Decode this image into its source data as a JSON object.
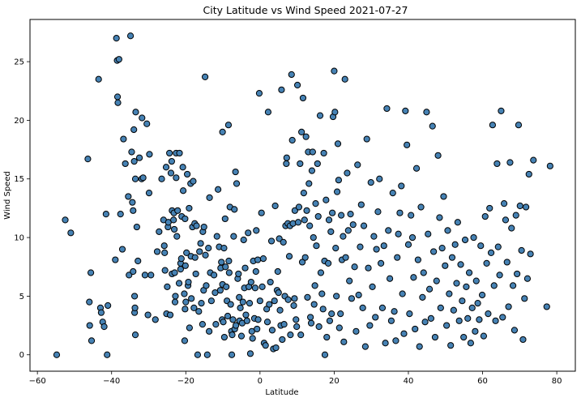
{
  "chart_data": {
    "type": "scatter",
    "title": "City Latitude vs Wind Speed 2021-07-27",
    "xlabel": "Latitude",
    "ylabel": "Wind Speed",
    "xlim": [
      -62,
      85
    ],
    "ylim": [
      -1.4,
      28.6
    ],
    "xticks": [
      -60,
      -40,
      -20,
      0,
      20,
      40,
      60,
      80
    ],
    "yticks": [
      0,
      5,
      10,
      15,
      20,
      25
    ],
    "grid": false,
    "colors": {
      "marker_fill": "#4682b4",
      "marker_edge": "#000000"
    },
    "points": [
      [
        -54.8,
        0.0
      ],
      [
        -52.5,
        11.5
      ],
      [
        -51.0,
        10.4
      ],
      [
        -46.4,
        16.7
      ],
      [
        -46.0,
        4.5
      ],
      [
        -45.9,
        2.5
      ],
      [
        -45.6,
        7.0
      ],
      [
        -45.4,
        1.2
      ],
      [
        -43.5,
        23.5
      ],
      [
        -43.0,
        4.0
      ],
      [
        -42.8,
        3.6
      ],
      [
        -42.4,
        2.8
      ],
      [
        -42.0,
        2.4
      ],
      [
        -41.5,
        12.0
      ],
      [
        -41.2,
        0.0
      ],
      [
        -41.0,
        4.2
      ],
      [
        -39.0,
        8.1
      ],
      [
        -38.7,
        27.0
      ],
      [
        -38.5,
        25.1
      ],
      [
        -38.4,
        22.0
      ],
      [
        -38.3,
        21.5
      ],
      [
        -38.0,
        25.2
      ],
      [
        -37.6,
        12.0
      ],
      [
        -37.1,
        9.0
      ],
      [
        -36.8,
        18.4
      ],
      [
        -36.3,
        16.3
      ],
      [
        -35.5,
        13.5
      ],
      [
        -35.3,
        6.8
      ],
      [
        -34.9,
        27.2
      ],
      [
        -34.6,
        17.3
      ],
      [
        -34.4,
        13.0
      ],
      [
        -34.2,
        12.3
      ],
      [
        -34.2,
        7.1
      ],
      [
        -34.0,
        19.2
      ],
      [
        -33.9,
        16.5
      ],
      [
        -33.8,
        3.6
      ],
      [
        -33.8,
        5.0
      ],
      [
        -33.7,
        4.0
      ],
      [
        -33.6,
        15.0
      ],
      [
        -33.6,
        1.7
      ],
      [
        -33.5,
        20.7
      ],
      [
        -33.2,
        10.9
      ],
      [
        -32.9,
        8.0
      ],
      [
        -32.5,
        16.8
      ],
      [
        -31.9,
        15.0
      ],
      [
        -31.8,
        20.2
      ],
      [
        -31.5,
        15.1
      ],
      [
        -31.0,
        6.8
      ],
      [
        -30.5,
        19.7
      ],
      [
        -30.2,
        3.4
      ],
      [
        -29.9,
        13.8
      ],
      [
        -29.8,
        17.1
      ],
      [
        -29.4,
        6.8
      ],
      [
        -28.2,
        3.0
      ],
      [
        -27.7,
        8.8
      ],
      [
        -27.2,
        10.5
      ],
      [
        -26.5,
        15.0
      ],
      [
        -26.0,
        11.5
      ],
      [
        -25.8,
        9.3
      ],
      [
        -25.7,
        8.7
      ],
      [
        -25.6,
        7.2
      ],
      [
        -25.3,
        16.0
      ],
      [
        -25.2,
        3.5
      ],
      [
        -25.0,
        5.8
      ],
      [
        -24.8,
        10.9
      ],
      [
        -24.7,
        11.3
      ],
      [
        -24.4,
        17.2
      ],
      [
        -24.2,
        3.4
      ],
      [
        -24.0,
        15.5
      ],
      [
        -23.8,
        16.5
      ],
      [
        -23.7,
        12.3
      ],
      [
        -23.7,
        6.9
      ],
      [
        -23.3,
        11.5
      ],
      [
        -23.2,
        12.1
      ],
      [
        -23.1,
        10.7
      ],
      [
        -23.0,
        7.0
      ],
      [
        -22.9,
        4.5
      ],
      [
        -22.8,
        5.0
      ],
      [
        -22.6,
        17.2
      ],
      [
        -22.6,
        15.1
      ],
      [
        -22.4,
        10.1
      ],
      [
        -22.2,
        12.3
      ],
      [
        -21.8,
        6.1
      ],
      [
        -21.7,
        17.2
      ],
      [
        -21.4,
        7.3
      ],
      [
        -21.4,
        7.8
      ],
      [
        -21.2,
        8.2
      ],
      [
        -21.1,
        11.8
      ],
      [
        -20.8,
        16.0
      ],
      [
        -20.7,
        14.0
      ],
      [
        -20.4,
        5.2
      ],
      [
        -20.3,
        1.2
      ],
      [
        -20.2,
        11.6
      ],
      [
        -20.2,
        3.9
      ],
      [
        -20.1,
        7.6
      ],
      [
        -20.0,
        4.5
      ],
      [
        -19.8,
        8.7
      ],
      [
        -19.6,
        15.4
      ],
      [
        -19.4,
        5.9
      ],
      [
        -19.3,
        6.2
      ],
      [
        -19.1,
        12.5
      ],
      [
        -19.0,
        2.3
      ],
      [
        -18.7,
        14.6
      ],
      [
        -18.6,
        8.4
      ],
      [
        -18.5,
        4.8
      ],
      [
        -18.2,
        10.9
      ],
      [
        -18.0,
        14.8
      ],
      [
        -17.8,
        4.0
      ],
      [
        -17.6,
        11.2
      ],
      [
        -17.5,
        8.3
      ],
      [
        -17.3,
        6.9
      ],
      [
        -17.1,
        11.0
      ],
      [
        -16.8,
        0.0
      ],
      [
        -16.5,
        3.7
      ],
      [
        -16.3,
        8.8
      ],
      [
        -16.0,
        9.5
      ],
      [
        -15.8,
        4.4
      ],
      [
        -15.5,
        2.6
      ],
      [
        -15.4,
        10.5
      ],
      [
        -15.2,
        5.5
      ],
      [
        -15.1,
        10.9
      ],
      [
        -14.8,
        23.7
      ],
      [
        -14.7,
        8.5
      ],
      [
        -14.5,
        5.9
      ],
      [
        -14.2,
        0.0
      ],
      [
        -13.9,
        9.1
      ],
      [
        -13.7,
        2.0
      ],
      [
        -13.6,
        13.4
      ],
      [
        -13.4,
        7.0
      ],
      [
        -13.1,
        4.6
      ],
      [
        -12.4,
        6.8
      ],
      [
        -12.1,
        5.3
      ],
      [
        -11.9,
        2.6
      ],
      [
        -11.6,
        10.1
      ],
      [
        -11.3,
        14.1
      ],
      [
        -11.0,
        9.2
      ],
      [
        -10.7,
        5.5
      ],
      [
        -10.6,
        7.4
      ],
      [
        -10.4,
        7.9
      ],
      [
        -10.2,
        3.0
      ],
      [
        -10.1,
        19.0
      ],
      [
        -10.1,
        6.0
      ],
      [
        -9.9,
        2.8
      ],
      [
        -9.7,
        9.1
      ],
      [
        -9.6,
        1.5
      ],
      [
        -9.4,
        11.6
      ],
      [
        -9.3,
        7.5
      ],
      [
        -9.1,
        5.8
      ],
      [
        -8.9,
        4.6
      ],
      [
        -8.7,
        3.3
      ],
      [
        -8.5,
        19.6
      ],
      [
        -8.4,
        8.0
      ],
      [
        -8.3,
        7.0
      ],
      [
        -8.1,
        12.6
      ],
      [
        -7.9,
        4.3
      ],
      [
        -7.7,
        2.0
      ],
      [
        -7.6,
        0.0
      ],
      [
        -7.5,
        1.7
      ],
      [
        -7.3,
        3.0
      ],
      [
        -7.1,
        10.1
      ],
      [
        -6.9,
        12.4
      ],
      [
        -6.8,
        2.2
      ],
      [
        -6.6,
        15.6
      ],
      [
        -6.5,
        2.5
      ],
      [
        -6.3,
        14.6
      ],
      [
        -6.0,
        6.5
      ],
      [
        -5.8,
        6.9
      ],
      [
        -5.6,
        4.9
      ],
      [
        -5.5,
        2.9
      ],
      [
        -5.3,
        4.0
      ],
      [
        -5.0,
        1.6
      ],
      [
        -4.8,
        2.7
      ],
      [
        -4.6,
        4.5
      ],
      [
        -4.4,
        9.8
      ],
      [
        -4.2,
        5.7
      ],
      [
        -4.0,
        7.4
      ],
      [
        -3.8,
        3.4
      ],
      [
        -3.5,
        2.9
      ],
      [
        -3.2,
        10.4
      ],
      [
        -3.0,
        5.8
      ],
      [
        -2.8,
        4.4
      ],
      [
        -2.6,
        0.1
      ],
      [
        -2.4,
        6.2
      ],
      [
        -2.2,
        2.0
      ],
      [
        -2.0,
        1.4
      ],
      [
        -1.8,
        8.0
      ],
      [
        -1.5,
        3.1
      ],
      [
        -1.3,
        5.7
      ],
      [
        -1.1,
        7.1
      ],
      [
        -1.0,
        10.6
      ],
      [
        -0.8,
        2.2
      ],
      [
        -0.6,
        8.1
      ],
      [
        -0.5,
        3.0
      ],
      [
        -0.2,
        22.3
      ],
      [
        0.0,
        4.6
      ],
      [
        0.4,
        12.1
      ],
      [
        0.6,
        5.8
      ],
      [
        0.9,
        8.2
      ],
      [
        1.1,
        1.0
      ],
      [
        1.5,
        0.8
      ],
      [
        1.8,
        3.9
      ],
      [
        2.0,
        2.8
      ],
      [
        2.2,
        20.7
      ],
      [
        2.5,
        4.3
      ],
      [
        2.8,
        6.2
      ],
      [
        3.1,
        9.7
      ],
      [
        3.3,
        2.1
      ],
      [
        3.6,
        0.5
      ],
      [
        3.9,
        4.6
      ],
      [
        4.1,
        12.7
      ],
      [
        4.3,
        0.6
      ],
      [
        4.6,
        5.5
      ],
      [
        4.8,
        7.1
      ],
      [
        5.0,
        5.3
      ],
      [
        5.2,
        9.9
      ],
      [
        5.4,
        3.8
      ],
      [
        5.6,
        2.5
      ],
      [
        5.8,
        22.6
      ],
      [
        6.0,
        1.3
      ],
      [
        6.3,
        9.6
      ],
      [
        6.5,
        2.6
      ],
      [
        6.7,
        5.0
      ],
      [
        6.9,
        11.0
      ],
      [
        7.1,
        16.3
      ],
      [
        7.2,
        16.8
      ],
      [
        7.5,
        11.2
      ],
      [
        7.6,
        4.7
      ],
      [
        7.9,
        8.4
      ],
      [
        8.1,
        11.0
      ],
      [
        8.2,
        1.7
      ],
      [
        8.5,
        23.9
      ],
      [
        8.7,
        18.3
      ],
      [
        8.9,
        11.2
      ],
      [
        9.1,
        4.2
      ],
      [
        9.3,
        4.8
      ],
      [
        9.4,
        12.3
      ],
      [
        9.7,
        3.0
      ],
      [
        9.9,
        2.4
      ],
      [
        10.1,
        23.0
      ],
      [
        10.3,
        11.3
      ],
      [
        10.5,
        12.6
      ],
      [
        10.8,
        16.3
      ],
      [
        11.0,
        1.7
      ],
      [
        11.2,
        19.0
      ],
      [
        11.4,
        7.9
      ],
      [
        11.6,
        21.9
      ],
      [
        11.8,
        13.8
      ],
      [
        12.0,
        11.5
      ],
      [
        12.2,
        8.3
      ],
      [
        12.4,
        18.6
      ],
      [
        12.6,
        12.3
      ],
      [
        12.8,
        4.9
      ],
      [
        13.0,
        17.3
      ],
      [
        13.2,
        14.6
      ],
      [
        13.4,
        11.0
      ],
      [
        13.6,
        3.2
      ],
      [
        13.8,
        2.7
      ],
      [
        14.0,
        15.7
      ],
      [
        14.2,
        17.3
      ],
      [
        14.4,
        10.0
      ],
      [
        14.6,
        4.3
      ],
      [
        14.8,
        5.9
      ],
      [
        15.0,
        12.9
      ],
      [
        15.2,
        9.3
      ],
      [
        15.5,
        16.3
      ],
      [
        15.7,
        11.8
      ],
      [
        15.9,
        2.4
      ],
      [
        16.2,
        20.4
      ],
      [
        16.4,
        7.0
      ],
      [
        16.7,
        5.2
      ],
      [
        17.0,
        3.9
      ],
      [
        17.2,
        17.2
      ],
      [
        17.4,
        8.0
      ],
      [
        17.5,
        0.0
      ],
      [
        17.8,
        13.2
      ],
      [
        18.0,
        1.5
      ],
      [
        18.4,
        7.8
      ],
      [
        18.6,
        11.5
      ],
      [
        18.8,
        2.9
      ],
      [
        19.1,
        10.5
      ],
      [
        19.3,
        3.5
      ],
      [
        19.5,
        12.1
      ],
      [
        19.7,
        20.3
      ],
      [
        20.0,
        24.2
      ],
      [
        20.2,
        20.7
      ],
      [
        20.4,
        9.1
      ],
      [
        20.6,
        5.0
      ],
      [
        20.8,
        13.9
      ],
      [
        21.0,
        18.0
      ],
      [
        21.2,
        14.9
      ],
      [
        21.4,
        2.3
      ],
      [
        21.7,
        3.5
      ],
      [
        21.9,
        11.9
      ],
      [
        22.1,
        8.1
      ],
      [
        22.4,
        10.1
      ],
      [
        22.6,
        1.1
      ],
      [
        22.9,
        23.5
      ],
      [
        23.1,
        8.3
      ],
      [
        23.5,
        15.5
      ],
      [
        23.8,
        10.6
      ],
      [
        24.1,
        6.3
      ],
      [
        24.4,
        12.0
      ],
      [
        24.7,
        4.8
      ],
      [
        25.1,
        11.1
      ],
      [
        25.5,
        7.5
      ],
      [
        25.9,
        2.0
      ],
      [
        26.3,
        16.2
      ],
      [
        26.6,
        5.1
      ],
      [
        27.0,
        9.2
      ],
      [
        27.3,
        12.8
      ],
      [
        27.7,
        4.0
      ],
      [
        28.0,
        11.0
      ],
      [
        28.4,
        0.7
      ],
      [
        28.8,
        18.4
      ],
      [
        29.2,
        7.4
      ],
      [
        29.6,
        2.5
      ],
      [
        29.9,
        14.7
      ],
      [
        30.3,
        5.8
      ],
      [
        30.7,
        10.1
      ],
      [
        31.1,
        3.2
      ],
      [
        31.4,
        9.0
      ],
      [
        31.8,
        12.2
      ],
      [
        32.2,
        15.0
      ],
      [
        32.6,
        7.8
      ],
      [
        33.0,
        4.0
      ],
      [
        33.4,
        9.3
      ],
      [
        33.8,
        1.0
      ],
      [
        34.2,
        21.0
      ],
      [
        34.6,
        10.6
      ],
      [
        35.0,
        6.5
      ],
      [
        35.4,
        2.9
      ],
      [
        35.8,
        13.8
      ],
      [
        36.2,
        3.7
      ],
      [
        36.6,
        1.2
      ],
      [
        37.0,
        8.3
      ],
      [
        37.3,
        10.3
      ],
      [
        37.7,
        12.1
      ],
      [
        38.1,
        14.4
      ],
      [
        38.4,
        5.2
      ],
      [
        38.8,
        1.8
      ],
      [
        39.2,
        20.8
      ],
      [
        39.6,
        17.9
      ],
      [
        40.0,
        9.4
      ],
      [
        40.3,
        3.5
      ],
      [
        40.7,
        11.9
      ],
      [
        41.1,
        10.0
      ],
      [
        41.4,
        6.6
      ],
      [
        41.8,
        2.2
      ],
      [
        42.2,
        15.9
      ],
      [
        42.6,
        8.1
      ],
      [
        43.0,
        0.7
      ],
      [
        43.4,
        12.6
      ],
      [
        43.8,
        4.9
      ],
      [
        44.1,
        7.0
      ],
      [
        44.5,
        2.8
      ],
      [
        44.9,
        20.7
      ],
      [
        45.3,
        10.3
      ],
      [
        45.7,
        5.6
      ],
      [
        46.1,
        3.1
      ],
      [
        46.5,
        19.5
      ],
      [
        46.8,
        8.8
      ],
      [
        47.2,
        1.5
      ],
      [
        47.6,
        6.3
      ],
      [
        48.0,
        17.0
      ],
      [
        48.4,
        11.7
      ],
      [
        48.7,
        4.0
      ],
      [
        49.1,
        9.1
      ],
      [
        49.5,
        13.5
      ],
      [
        49.9,
        7.6
      ],
      [
        50.3,
        2.5
      ],
      [
        50.6,
        10.6
      ],
      [
        51.0,
        5.2
      ],
      [
        51.4,
        0.8
      ],
      [
        51.8,
        8.3
      ],
      [
        52.2,
        3.8
      ],
      [
        52.6,
        9.4
      ],
      [
        53.0,
        6.1
      ],
      [
        53.3,
        11.3
      ],
      [
        53.7,
        2.9
      ],
      [
        54.1,
        7.7
      ],
      [
        54.5,
        4.6
      ],
      [
        54.9,
        1.5
      ],
      [
        55.3,
        9.8
      ],
      [
        55.6,
        5.8
      ],
      [
        56.0,
        3.1
      ],
      [
        56.4,
        7.0
      ],
      [
        56.8,
        1.0
      ],
      [
        57.2,
        4.0
      ],
      [
        57.6,
        10.0
      ],
      [
        58.0,
        2.0
      ],
      [
        58.3,
        6.3
      ],
      [
        58.7,
        4.4
      ],
      [
        59.1,
        3.0
      ],
      [
        59.5,
        9.3
      ],
      [
        59.9,
        5.1
      ],
      [
        60.3,
        1.6
      ],
      [
        60.7,
        11.8
      ],
      [
        61.1,
        7.8
      ],
      [
        61.5,
        3.5
      ],
      [
        61.9,
        12.5
      ],
      [
        62.3,
        8.7
      ],
      [
        62.7,
        19.6
      ],
      [
        63.1,
        5.9
      ],
      [
        63.5,
        2.9
      ],
      [
        63.9,
        16.3
      ],
      [
        64.2,
        9.2
      ],
      [
        64.6,
        6.8
      ],
      [
        65.0,
        20.8
      ],
      [
        65.4,
        3.2
      ],
      [
        65.8,
        12.9
      ],
      [
        66.2,
        11.5
      ],
      [
        66.6,
        7.9
      ],
      [
        67.0,
        4.1
      ],
      [
        67.4,
        16.4
      ],
      [
        67.8,
        10.8
      ],
      [
        68.2,
        5.9
      ],
      [
        68.6,
        2.1
      ],
      [
        69.0,
        11.9
      ],
      [
        69.3,
        6.9
      ],
      [
        69.7,
        19.6
      ],
      [
        70.1,
        12.7
      ],
      [
        70.5,
        8.9
      ],
      [
        70.9,
        1.3
      ],
      [
        71.3,
        4.8
      ],
      [
        71.7,
        12.6
      ],
      [
        72.1,
        6.5
      ],
      [
        72.5,
        15.4
      ],
      [
        72.9,
        8.6
      ],
      [
        73.7,
        16.6
      ],
      [
        77.3,
        4.1
      ],
      [
        78.2,
        16.1
      ]
    ]
  }
}
